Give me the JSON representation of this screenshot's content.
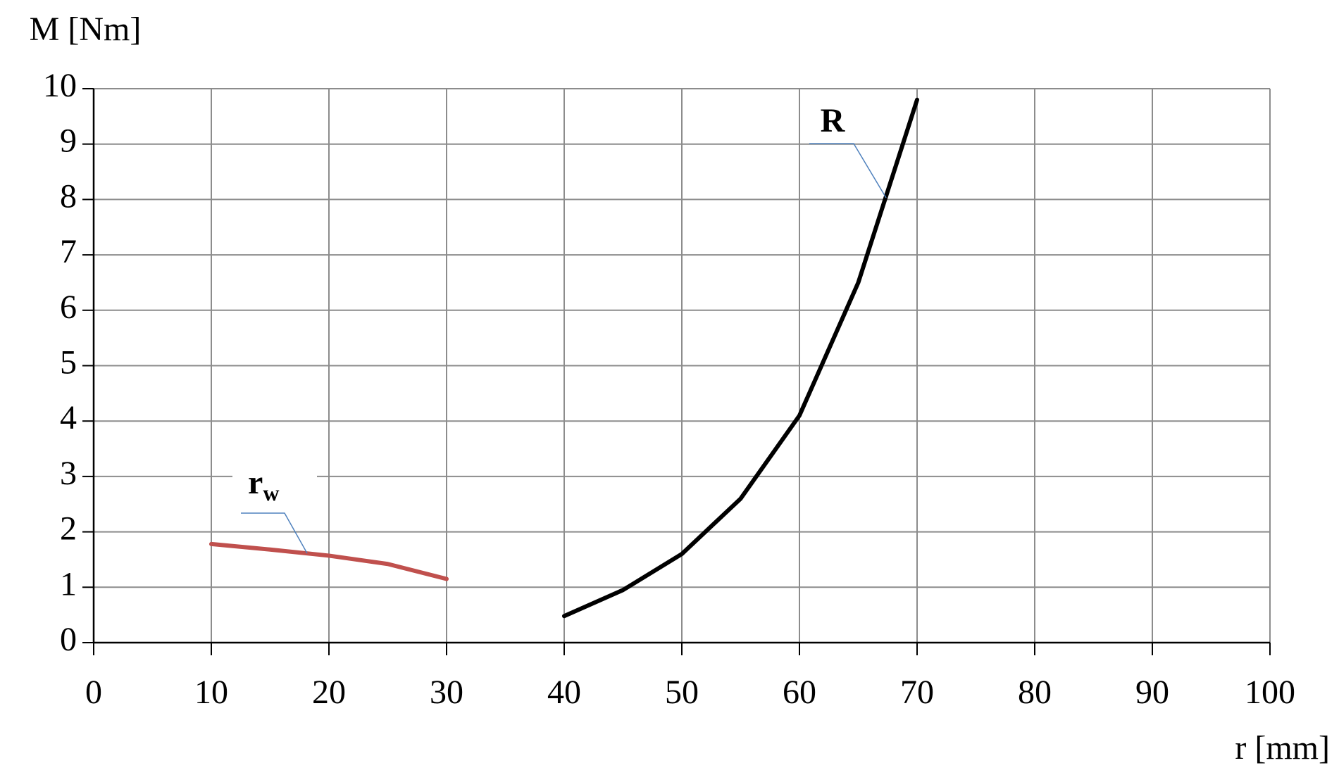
{
  "chart_data": {
    "type": "line",
    "y_label": "M [Nm]",
    "x_label": "r [mm]",
    "xlim": [
      0,
      100
    ],
    "xticks": [
      0,
      10,
      20,
      30,
      40,
      50,
      60,
      70,
      80,
      90,
      100
    ],
    "ylim": [
      0,
      10
    ],
    "yticks": [
      0,
      1,
      2,
      3,
      4,
      5,
      6,
      7,
      8,
      9,
      10
    ],
    "grid": true,
    "series": [
      {
        "name": "R",
        "color": "#000000",
        "x": [
          40,
          45,
          50,
          55,
          60,
          65,
          70
        ],
        "values": [
          0.48,
          0.95,
          1.6,
          2.6,
          4.1,
          6.5,
          9.8
        ]
      },
      {
        "name": "r",
        "subscript": "w",
        "color": "#c0504d",
        "x": [
          10,
          15,
          20,
          25,
          30
        ],
        "values": [
          1.78,
          1.68,
          1.57,
          1.42,
          1.15
        ]
      }
    ]
  }
}
